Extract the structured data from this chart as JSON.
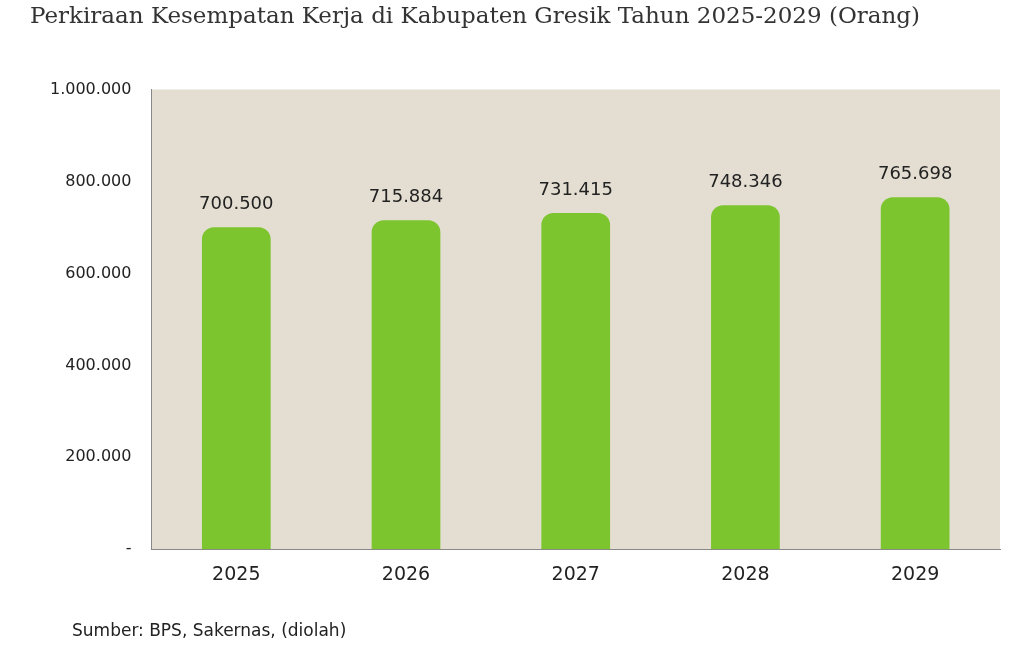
{
  "chart_data": {
    "type": "bar",
    "title": "Perkiraan Kesempatan Kerja di Kabupaten Gresik Tahun 2025-2029 (Orang)",
    "categories": [
      "2025",
      "2026",
      "2027",
      "2028",
      "2029"
    ],
    "values": [
      700500,
      715884,
      731415,
      748346,
      765698
    ],
    "value_labels": [
      "700.500",
      "715.884",
      "731.415",
      "748.346",
      "765.698"
    ],
    "color": "#7cc52e",
    "ylim": [
      0,
      1000000
    ],
    "yticks": [
      {
        "value": 0,
        "label": "-"
      },
      {
        "value": 200000,
        "label": "200.000"
      },
      {
        "value": 400000,
        "label": "400.000"
      },
      {
        "value": 600000,
        "label": "600.000"
      },
      {
        "value": 800000,
        "label": "800.000"
      },
      {
        "value": 1000000,
        "label": "1.000.000"
      }
    ],
    "grid": false,
    "annotations": [
      "Sumber: BPS, Sakernas, (diolah)"
    ]
  }
}
